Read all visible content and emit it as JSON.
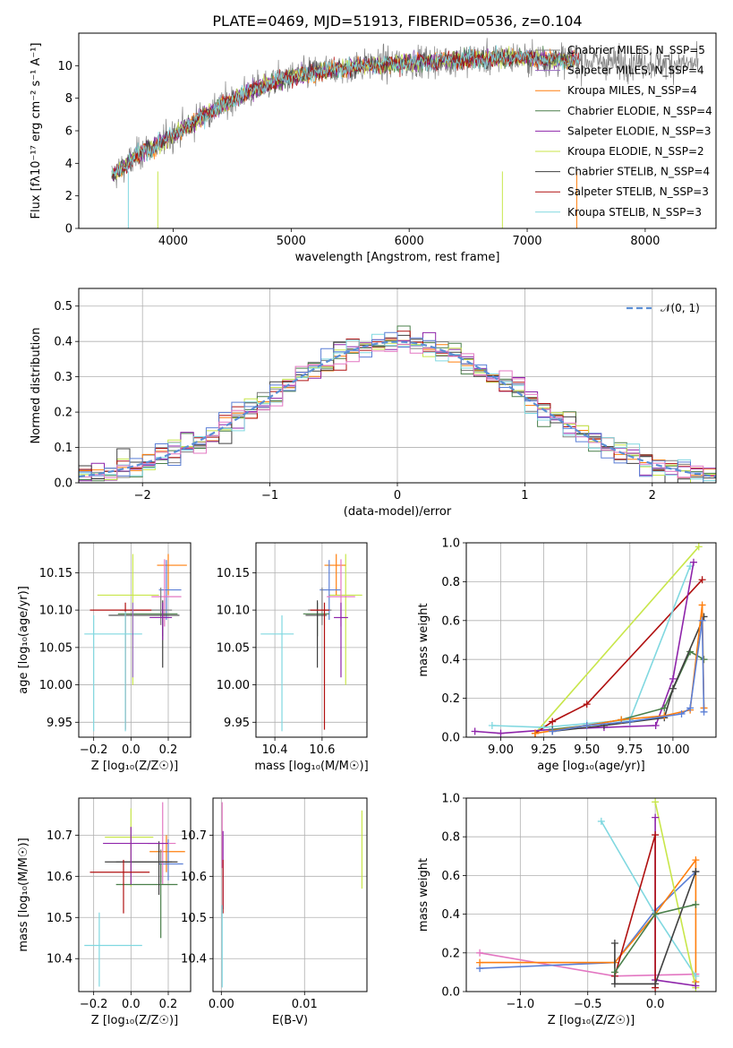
{
  "colors": {
    "chab_miles": "#7f7f7f",
    "salp_miles": "#9467bd",
    "krou_miles": "#ff7f0e",
    "chab_elodie": "#4a7f4a",
    "salp_elodie": "#8e24aa",
    "krou_elodie": "#c8e64a",
    "chab_stelib": "#404040",
    "salp_stelib": "#b01010",
    "krou_stelib": "#80d8e0",
    "extra_blue": "#5b7fd6",
    "extra_pink": "#e377c2",
    "normal_curve": "#5b8fd6"
  },
  "chart_data": [
    {
      "id": "spectrum",
      "type": "line",
      "title": "PLATE=0469, MJD=51913, FIBERID=0536, z=0.104",
      "xlabel": "wavelength [Angstrom, rest frame]",
      "ylabel": "Flux [fλ10⁻¹⁷ erg cm⁻² s⁻¹ A⁻¹]",
      "xlim": [
        3200,
        8600
      ],
      "ylim": [
        0,
        12
      ],
      "xticks": [
        "4000",
        "5000",
        "6000",
        "7000",
        "8000"
      ],
      "yticks": [
        "0",
        "2",
        "4",
        "6",
        "8",
        "10"
      ],
      "grid": false,
      "legend_position": "top-right",
      "legend": [
        {
          "label": "Chabrier MILES, N_SSP=5",
          "color_key": "chab_miles"
        },
        {
          "label": "Salpeter MILES, N_SSP=4",
          "color_key": "salp_miles"
        },
        {
          "label": "Kroupa MILES, N_SSP=4",
          "color_key": "krou_miles"
        },
        {
          "label": "Chabrier ELODIE, N_SSP=4",
          "color_key": "chab_elodie"
        },
        {
          "label": "Salpeter ELODIE, N_SSP=3",
          "color_key": "salp_elodie"
        },
        {
          "label": "Kroupa ELODIE, N_SSP=2",
          "color_key": "krou_elodie"
        },
        {
          "label": "Chabrier STELIB, N_SSP=4",
          "color_key": "chab_stelib"
        },
        {
          "label": "Salpeter STELIB, N_SSP=3",
          "color_key": "salp_stelib"
        },
        {
          "label": "Kroupa STELIB, N_SSP=3",
          "color_key": "krou_stelib"
        }
      ],
      "continuum": [
        [
          3480,
          3.2
        ],
        [
          3700,
          4.5
        ],
        [
          3900,
          5.3
        ],
        [
          4100,
          6.2
        ],
        [
          4300,
          7.1
        ],
        [
          4600,
          8.3
        ],
        [
          4900,
          9.1
        ],
        [
          5200,
          9.6
        ],
        [
          5600,
          10.0
        ],
        [
          6000,
          10.2
        ],
        [
          6500,
          10.4
        ],
        [
          7000,
          10.5
        ],
        [
          7400,
          10.3
        ]
      ],
      "observed_x_range": [
        3480,
        8450
      ]
    },
    {
      "id": "residual_hist",
      "type": "line",
      "xlabel": "(data-model)/error",
      "ylabel": "Normed distribution",
      "xlim": [
        -2.5,
        2.5
      ],
      "ylim": [
        0,
        0.55
      ],
      "xticks": [
        "−2",
        "−1",
        "0",
        "1",
        "2"
      ],
      "yticks": [
        "0.0",
        "0.1",
        "0.2",
        "0.3",
        "0.4",
        "0.5"
      ],
      "grid": true,
      "legend_position": "top-right",
      "legend_label": "𝒩(0, 1)"
    },
    {
      "id": "age_vs_Z",
      "type": "scatter",
      "xlabel": "Z [log₁₀(Z/Z☉)]",
      "ylabel": "age  [log₁₀(age/yr)]",
      "xlim": [
        -0.28,
        0.32
      ],
      "ylim": [
        9.93,
        10.19
      ],
      "xticks": [
        "−0.2",
        "0.0",
        "0.2"
      ],
      "yticks": [
        "9.95",
        "10.00",
        "10.05",
        "10.10",
        "10.15"
      ],
      "grid": true,
      "points": [
        {
          "x": 0.01,
          "y": 10.12,
          "xerr": [
            0.19,
            0.14
          ],
          "yerr": [
            0.12,
            0.055
          ],
          "color_key": "krou_elodie"
        },
        {
          "x": 0.2,
          "y": 10.16,
          "xerr": [
            0.06,
            0.1
          ],
          "yerr": [
            0.04,
            0.015
          ],
          "color_key": "krou_miles"
        },
        {
          "x": 0.19,
          "y": 10.127,
          "xerr": [
            0.04,
            0.08
          ],
          "yerr": [
            0.04,
            0.04
          ],
          "color_key": "extra_blue"
        },
        {
          "x": 0.18,
          "y": 10.118,
          "xerr": [
            0.07,
            0.09
          ],
          "yerr": [
            0.04,
            0.05
          ],
          "color_key": "extra_pink"
        },
        {
          "x": 0.16,
          "y": 10.1,
          "xerr": [
            0.22,
            0.06
          ],
          "yerr": [
            0.02,
            0.03
          ],
          "color_key": "chab_miles"
        },
        {
          "x": 0.17,
          "y": 10.095,
          "xerr": [
            0.24,
            0.08
          ],
          "yerr": [
            0.03,
            0.015
          ],
          "color_key": "chab_elodie"
        },
        {
          "x": 0.17,
          "y": 10.093,
          "xerr": [
            0.29,
            0.09
          ],
          "yerr": [
            0.07,
            0.02
          ],
          "color_key": "chab_stelib"
        },
        {
          "x": 0.17,
          "y": 10.09,
          "xerr": [
            0.07,
            0.05
          ],
          "yerr": [
            0.03,
            0.02
          ],
          "color_key": "salp_elodie"
        },
        {
          "x": -0.03,
          "y": 10.1,
          "xerr": [
            0.19,
            0.14
          ],
          "yerr": [
            0.16,
            0.01
          ],
          "color_key": "salp_stelib"
        },
        {
          "x": -0.2,
          "y": 10.068,
          "xerr": [
            0.05,
            0.26
          ],
          "yerr": [
            0.13,
            0.025
          ],
          "color_key": "krou_stelib"
        },
        {
          "x": -0.03,
          "y": 10.068,
          "xerr": [
            0.0,
            0.0
          ],
          "yerr": [
            0.13,
            0.03
          ],
          "color_key": "krou_stelib"
        },
        {
          "x": 0.01,
          "y": 10.09,
          "xerr": [
            0.0,
            0.0
          ],
          "yerr": [
            0.08,
            0.02
          ],
          "color_key": "salp_miles"
        }
      ]
    },
    {
      "id": "age_vs_mass",
      "type": "scatter",
      "xlabel": "mass [log₁₀(M/M☉)]",
      "ylabel": "",
      "xlim": [
        10.32,
        10.79
      ],
      "ylim": [
        9.93,
        10.19
      ],
      "xticks": [
        "10.4",
        "10.6"
      ],
      "yticks": [
        "9.95",
        "10.00",
        "10.05",
        "10.10",
        "10.15"
      ],
      "grid": true,
      "points": [
        {
          "x": 10.7,
          "y": 10.12,
          "xerr": [
            0.07,
            0.07
          ],
          "yerr": [
            0.12,
            0.055
          ],
          "color_key": "krou_elodie"
        },
        {
          "x": 10.66,
          "y": 10.16,
          "xerr": [
            0.05,
            0.04
          ],
          "yerr": [
            0.04,
            0.015
          ],
          "color_key": "krou_miles"
        },
        {
          "x": 10.63,
          "y": 10.127,
          "xerr": [
            0.04,
            0.05
          ],
          "yerr": [
            0.04,
            0.04
          ],
          "color_key": "extra_blue"
        },
        {
          "x": 10.68,
          "y": 10.118,
          "xerr": [
            0.06,
            0.06
          ],
          "yerr": [
            0.04,
            0.05
          ],
          "color_key": "extra_pink"
        },
        {
          "x": 10.6,
          "y": 10.1,
          "xerr": [
            0.06,
            0.04
          ],
          "yerr": [
            0.02,
            0.03
          ],
          "color_key": "chab_miles"
        },
        {
          "x": 10.58,
          "y": 10.095,
          "xerr": [
            0.06,
            0.05
          ],
          "yerr": [
            0.03,
            0.015
          ],
          "color_key": "chab_elodie"
        },
        {
          "x": 10.58,
          "y": 10.093,
          "xerr": [
            0.05,
            0.04
          ],
          "yerr": [
            0.07,
            0.02
          ],
          "color_key": "chab_stelib"
        },
        {
          "x": 10.68,
          "y": 10.09,
          "xerr": [
            0.03,
            0.03
          ],
          "yerr": [
            0.08,
            0.02
          ],
          "color_key": "salp_elodie"
        },
        {
          "x": 10.61,
          "y": 10.1,
          "xerr": [
            0.06,
            0.02
          ],
          "yerr": [
            0.16,
            0.01
          ],
          "color_key": "salp_stelib"
        },
        {
          "x": 10.43,
          "y": 10.068,
          "xerr": [
            0.09,
            0.05
          ],
          "yerr": [
            0.13,
            0.025
          ],
          "color_key": "krou_stelib"
        }
      ]
    },
    {
      "id": "massweight_vs_age",
      "type": "line",
      "xlabel": "age  [log₁₀(age/yr)]",
      "ylabel": "mass weight",
      "xlim": [
        8.8,
        10.25
      ],
      "ylim": [
        0,
        1
      ],
      "xticks": [
        "9.00",
        "9.25",
        "9.50",
        "9.75",
        "10.00"
      ],
      "yticks": [
        "0.0",
        "0.2",
        "0.4",
        "0.6",
        "0.8",
        "1.0"
      ],
      "grid": true,
      "series": [
        {
          "color_key": "krou_elodie",
          "x": [
            9.2,
            10.15
          ],
          "y": [
            0.02,
            0.98
          ]
        },
        {
          "color_key": "salp_stelib",
          "x": [
            9.2,
            9.3,
            9.5,
            10.17
          ],
          "y": [
            0.02,
            0.08,
            0.17,
            0.81
          ]
        },
        {
          "color_key": "krou_stelib",
          "x": [
            8.95,
            9.25,
            9.5,
            9.75,
            10.1
          ],
          "y": [
            0.06,
            0.05,
            0.07,
            0.09,
            0.88
          ]
        },
        {
          "color_key": "salp_elodie",
          "x": [
            8.85,
            9.0,
            9.3,
            9.6,
            9.9,
            10.0,
            10.12
          ],
          "y": [
            0.03,
            0.02,
            0.04,
            0.05,
            0.06,
            0.3,
            0.9
          ]
        },
        {
          "color_key": "chab_elodie",
          "x": [
            9.3,
            9.5,
            9.7,
            9.95,
            10.1,
            10.18
          ],
          "y": [
            0.04,
            0.06,
            0.09,
            0.15,
            0.44,
            0.4
          ]
        },
        {
          "color_key": "chab_stelib",
          "x": [
            9.3,
            9.6,
            9.95,
            10.0,
            10.18
          ],
          "y": [
            0.03,
            0.06,
            0.1,
            0.25,
            0.62
          ]
        },
        {
          "color_key": "krou_miles",
          "x": [
            9.2,
            9.5,
            9.7,
            9.95,
            10.1,
            10.17,
            10.18
          ],
          "y": [
            0.02,
            0.06,
            0.09,
            0.11,
            0.14,
            0.68,
            0.15
          ]
        },
        {
          "color_key": "extra_blue",
          "x": [
            9.3,
            9.5,
            9.75,
            10.05,
            10.1,
            10.17,
            10.18
          ],
          "y": [
            0.03,
            0.06,
            0.08,
            0.12,
            0.15,
            0.6,
            0.13
          ]
        }
      ]
    },
    {
      "id": "mass_vs_Z",
      "type": "scatter",
      "xlabel": "Z [log₁₀(Z/Z☉)]",
      "ylabel": "mass [log₁₀(M/M☉)]",
      "xlim": [
        -0.28,
        0.32
      ],
      "ylim": [
        10.32,
        10.79
      ],
      "xticks": [
        "−0.2",
        "0.0",
        "0.2"
      ],
      "yticks": [
        "10.4",
        "10.5",
        "10.6",
        "10.7"
      ],
      "grid": true,
      "points": [
        {
          "x": 0.0,
          "y": 10.695,
          "xerr": [
            0.14,
            0.12
          ],
          "yerr": [
            0.12,
            0.07
          ],
          "color_key": "krou_elodie"
        },
        {
          "x": 0.19,
          "y": 10.66,
          "xerr": [
            0.09,
            0.1
          ],
          "yerr": [
            0.05,
            0.04
          ],
          "color_key": "krou_miles"
        },
        {
          "x": 0.2,
          "y": 10.63,
          "xerr": [
            0.05,
            0.08
          ],
          "yerr": [
            0.04,
            0.06
          ],
          "color_key": "extra_blue"
        },
        {
          "x": 0.17,
          "y": 10.68,
          "xerr": [
            0.08,
            0.07
          ],
          "yerr": [
            0.1,
            0.1
          ],
          "color_key": "extra_pink"
        },
        {
          "x": 0.16,
          "y": 10.635,
          "xerr": [
            0.24,
            0.06
          ],
          "yerr": [
            0.05,
            0.03
          ],
          "color_key": "chab_miles"
        },
        {
          "x": 0.16,
          "y": 10.58,
          "xerr": [
            0.24,
            0.09
          ],
          "yerr": [
            0.13,
            0.05
          ],
          "color_key": "chab_elodie"
        },
        {
          "x": 0.15,
          "y": 10.635,
          "xerr": [
            0.29,
            0.1
          ],
          "yerr": [
            0.08,
            0.05
          ],
          "color_key": "chab_stelib"
        },
        {
          "x": 0.0,
          "y": 10.68,
          "xerr": [
            0.15,
            0.2
          ],
          "yerr": [
            0.1,
            0.04
          ],
          "color_key": "salp_elodie"
        },
        {
          "x": -0.04,
          "y": 10.61,
          "xerr": [
            0.18,
            0.14
          ],
          "yerr": [
            0.1,
            0.03
          ],
          "color_key": "salp_stelib"
        },
        {
          "x": -0.17,
          "y": 10.432,
          "xerr": [
            0.08,
            0.23
          ],
          "yerr": [
            0.1,
            0.08
          ],
          "color_key": "krou_stelib"
        }
      ]
    },
    {
      "id": "mass_vs_ebv",
      "type": "scatter",
      "xlabel": "E(B-V)",
      "ylabel": "",
      "xlim": [
        -0.001,
        0.0175
      ],
      "ylim": [
        10.32,
        10.79
      ],
      "xticks": [
        "0.00",
        "0.01"
      ],
      "yticks": [
        "10.4",
        "10.5",
        "10.6",
        "10.7"
      ],
      "grid": true,
      "points": [
        {
          "x": 0.0169,
          "y": 10.67,
          "xerr": [
            0,
            0
          ],
          "yerr": [
            0.1,
            0.09
          ],
          "color_key": "krou_elodie"
        },
        {
          "x": 0.0001,
          "y": 10.68,
          "xerr": [
            0,
            0
          ],
          "yerr": [
            0.06,
            0.1
          ],
          "color_key": "extra_pink"
        },
        {
          "x": 0.0002,
          "y": 10.62,
          "xerr": [
            0,
            0
          ],
          "yerr": [
            0.1,
            0.09
          ],
          "color_key": "salp_elodie"
        },
        {
          "x": 0.0002,
          "y": 10.61,
          "xerr": [
            0,
            0
          ],
          "yerr": [
            0.1,
            0.03
          ],
          "color_key": "salp_stelib"
        },
        {
          "x": 0.0001,
          "y": 10.45,
          "xerr": [
            0,
            0
          ],
          "yerr": [
            0.12,
            0.08
          ],
          "color_key": "krou_stelib"
        }
      ]
    },
    {
      "id": "massweight_vs_Z",
      "type": "line",
      "xlabel": "Z [log₁₀(Z/Z☉)]",
      "ylabel": "mass weight",
      "xlim": [
        -1.4,
        0.45
      ],
      "ylim": [
        0,
        1
      ],
      "xticks": [
        "−1.0",
        "−0.5",
        "0.0"
      ],
      "yticks": [
        "0.0",
        "0.2",
        "0.4",
        "0.6",
        "0.8",
        "1.0"
      ],
      "grid": true,
      "series": [
        {
          "color_key": "extra_pink",
          "x": [
            -1.3,
            -0.3,
            0.3
          ],
          "y": [
            0.2,
            0.08,
            0.09
          ]
        },
        {
          "color_key": "extra_blue",
          "x": [
            -1.3,
            -0.3,
            0.0,
            0.3
          ],
          "y": [
            0.12,
            0.15,
            0.42,
            0.62
          ]
        },
        {
          "color_key": "krou_miles",
          "x": [
            -1.3,
            -0.3,
            0.0,
            0.3,
            0.3
          ],
          "y": [
            0.15,
            0.15,
            0.4,
            0.68,
            0.05
          ]
        },
        {
          "color_key": "krou_stelib",
          "x": [
            -0.4,
            0.0,
            0.3
          ],
          "y": [
            0.88,
            0.4,
            0.08
          ]
        },
        {
          "color_key": "krou_elodie",
          "x": [
            0.0,
            0.3
          ],
          "y": [
            0.98,
            0.02
          ]
        },
        {
          "color_key": "salp_elodie",
          "x": [
            0.0,
            0.0,
            0.3
          ],
          "y": [
            0.9,
            0.06,
            0.03
          ]
        },
        {
          "color_key": "salp_stelib",
          "x": [
            -0.3,
            0.0,
            0.0
          ],
          "y": [
            0.08,
            0.81,
            0.02
          ]
        },
        {
          "color_key": "chab_stelib",
          "x": [
            -0.3,
            -0.3,
            0.0,
            0.3
          ],
          "y": [
            0.25,
            0.04,
            0.04,
            0.62
          ]
        },
        {
          "color_key": "chab_elodie",
          "x": [
            -0.3,
            0.0,
            0.3
          ],
          "y": [
            0.1,
            0.4,
            0.45
          ]
        }
      ]
    }
  ]
}
